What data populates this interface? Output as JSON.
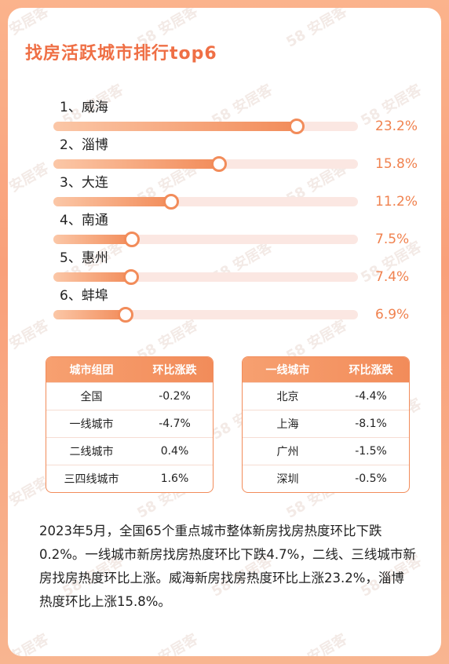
{
  "chart_data": {
    "type": "bar",
    "title": "找房活跃城市排行top6",
    "categories": [
      "1、威海",
      "2、淄博",
      "3、大连",
      "4、南通",
      "5、惠州",
      "6、蚌埠"
    ],
    "values": [
      23.2,
      15.8,
      11.2,
      7.5,
      7.4,
      6.9
    ],
    "value_labels": [
      "23.2%",
      "15.8%",
      "11.2%",
      "7.5%",
      "7.4%",
      "6.9%"
    ],
    "xlim": [
      0,
      29
    ],
    "xlabel": "",
    "ylabel": ""
  },
  "watermark": "58 安居客",
  "table_groups": {
    "header": [
      "城市组团",
      "环比涨跌"
    ],
    "rows": [
      [
        "全国",
        "-0.2%"
      ],
      [
        "一线城市",
        "-4.7%"
      ],
      [
        "二线城市",
        "0.4%"
      ],
      [
        "三四线城市",
        "1.6%"
      ]
    ]
  },
  "table_tier1": {
    "header": [
      "一线城市",
      "环比涨跌"
    ],
    "rows": [
      [
        "北京",
        "-4.4%"
      ],
      [
        "上海",
        "-8.1%"
      ],
      [
        "广州",
        "-1.5%"
      ],
      [
        "深圳",
        "-0.5%"
      ]
    ]
  },
  "summary": "2023年5月，全国65个重点城市整体新房找房热度环比下跌0.2%。一线城市新房找房热度环比下跌4.7%，二线、三线城市新房找房热度环比上涨。威海新房找房热度环比上涨23.2%，淄博热度环比上涨15.8%。"
}
